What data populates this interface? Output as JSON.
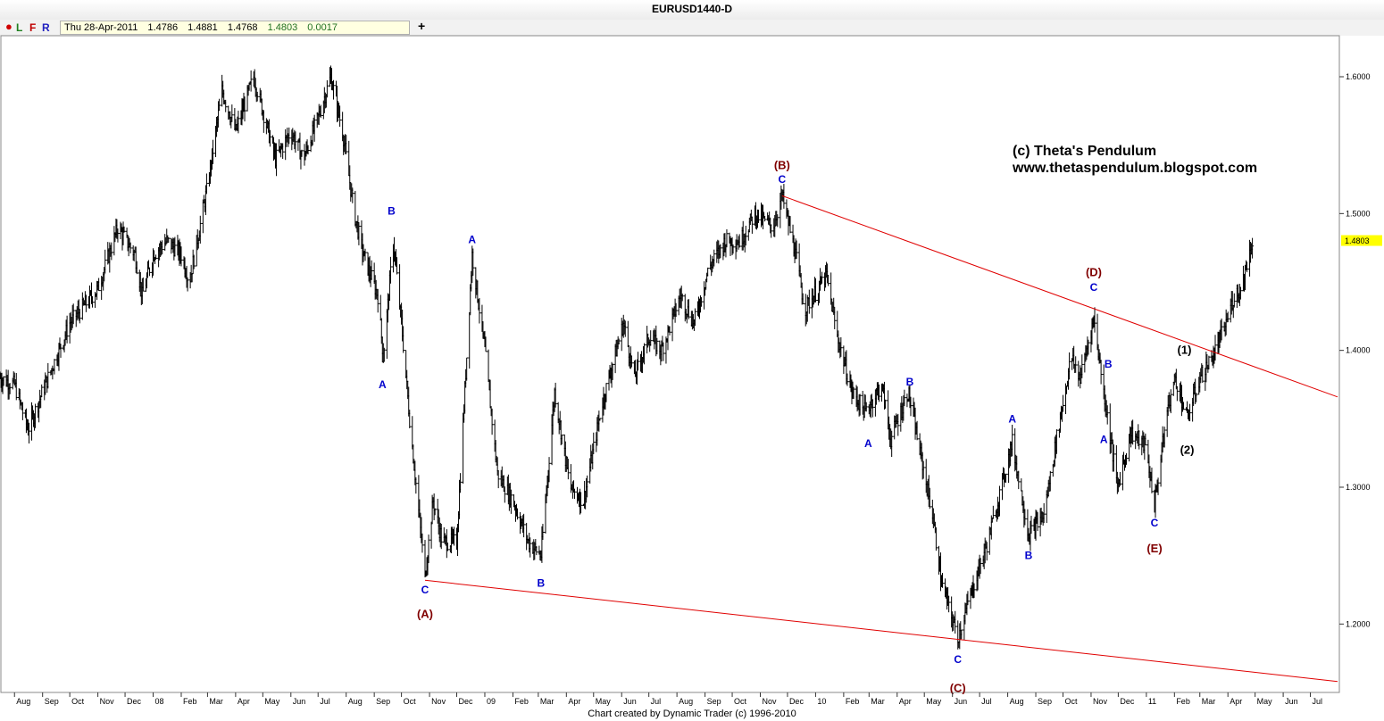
{
  "window": {
    "title": "EURUSD1440-D"
  },
  "toolbar": {
    "buttons": [
      "L",
      "F",
      "R"
    ],
    "add_label": "+",
    "quote": {
      "date": "Thu 28-Apr-2011",
      "open": "1.4786",
      "high": "1.4881",
      "low": "1.4768",
      "close": "1.4803",
      "change": "0.0017"
    }
  },
  "watermark": {
    "line1": "(c) Theta's Pendulum",
    "line2": "www.thetaspendulum.blogspot.com"
  },
  "footer": "Chart created by Dynamic Trader  (c) 1996-2010",
  "colors": {
    "price": "#000000",
    "trendline": "#e00000",
    "minor_label": "#0000cc",
    "major_label": "#800000",
    "count_label": "#000000",
    "last_price_bg": "#ffff00"
  },
  "chart_data": {
    "type": "ohlc",
    "symbol": "EURUSD",
    "timeframe": "Daily",
    "x_range": [
      "2007-07-16",
      "2011-07-31"
    ],
    "y_range": [
      1.15,
      1.63
    ],
    "y_ticks": [
      "1.2000",
      "1.3000",
      "1.4000",
      "1.5000",
      "1.6000"
    ],
    "last_price": "1.4803",
    "x_ticks": [
      {
        "label": "Aug",
        "date": "2007-08-01"
      },
      {
        "label": "Sep",
        "date": "2007-09-01"
      },
      {
        "label": "Oct",
        "date": "2007-10-01"
      },
      {
        "label": "Nov",
        "date": "2007-11-01"
      },
      {
        "label": "Dec",
        "date": "2007-12-01"
      },
      {
        "label": "08",
        "date": "2008-01-01"
      },
      {
        "label": "Feb",
        "date": "2008-02-01"
      },
      {
        "label": "Mar",
        "date": "2008-03-01"
      },
      {
        "label": "Apr",
        "date": "2008-04-01"
      },
      {
        "label": "May",
        "date": "2008-05-01"
      },
      {
        "label": "Jun",
        "date": "2008-06-01"
      },
      {
        "label": "Jul",
        "date": "2008-07-01"
      },
      {
        "label": "Aug",
        "date": "2008-08-01"
      },
      {
        "label": "Sep",
        "date": "2008-09-01"
      },
      {
        "label": "Oct",
        "date": "2008-10-01"
      },
      {
        "label": "Nov",
        "date": "2008-11-01"
      },
      {
        "label": "Dec",
        "date": "2008-12-01"
      },
      {
        "label": "09",
        "date": "2009-01-01"
      },
      {
        "label": "Feb",
        "date": "2009-02-01"
      },
      {
        "label": "Mar",
        "date": "2009-03-01"
      },
      {
        "label": "Apr",
        "date": "2009-04-01"
      },
      {
        "label": "May",
        "date": "2009-05-01"
      },
      {
        "label": "Jun",
        "date": "2009-06-01"
      },
      {
        "label": "Jul",
        "date": "2009-07-01"
      },
      {
        "label": "Aug",
        "date": "2009-08-01"
      },
      {
        "label": "Sep",
        "date": "2009-09-01"
      },
      {
        "label": "Oct",
        "date": "2009-10-01"
      },
      {
        "label": "Nov",
        "date": "2009-11-01"
      },
      {
        "label": "Dec",
        "date": "2009-12-01"
      },
      {
        "label": "10",
        "date": "2010-01-01"
      },
      {
        "label": "Feb",
        "date": "2010-02-01"
      },
      {
        "label": "Mar",
        "date": "2010-03-01"
      },
      {
        "label": "Apr",
        "date": "2010-04-01"
      },
      {
        "label": "May",
        "date": "2010-05-01"
      },
      {
        "label": "Jun",
        "date": "2010-06-01"
      },
      {
        "label": "Jul",
        "date": "2010-07-01"
      },
      {
        "label": "Aug",
        "date": "2010-08-01"
      },
      {
        "label": "Sep",
        "date": "2010-09-01"
      },
      {
        "label": "Oct",
        "date": "2010-10-01"
      },
      {
        "label": "Nov",
        "date": "2010-11-01"
      },
      {
        "label": "Dec",
        "date": "2010-12-01"
      },
      {
        "label": "11",
        "date": "2011-01-01"
      },
      {
        "label": "Feb",
        "date": "2011-02-01"
      },
      {
        "label": "Mar",
        "date": "2011-03-01"
      },
      {
        "label": "Apr",
        "date": "2011-04-01"
      },
      {
        "label": "May",
        "date": "2011-05-01"
      },
      {
        "label": "Jun",
        "date": "2011-06-01"
      },
      {
        "label": "Jul",
        "date": "2011-07-01"
      }
    ],
    "price_path": [
      [
        "2007-07-16",
        1.38
      ],
      [
        "2007-08-01",
        1.375
      ],
      [
        "2007-08-16",
        1.342
      ],
      [
        "2007-09-01",
        1.37
      ],
      [
        "2007-10-01",
        1.42
      ],
      [
        "2007-11-01",
        1.445
      ],
      [
        "2007-11-23",
        1.49
      ],
      [
        "2007-12-12",
        1.47
      ],
      [
        "2007-12-20",
        1.44
      ],
      [
        "2008-01-01",
        1.47
      ],
      [
        "2008-01-16",
        1.48
      ],
      [
        "2008-02-01",
        1.47
      ],
      [
        "2008-02-10",
        1.45
      ],
      [
        "2008-03-01",
        1.52
      ],
      [
        "2008-03-17",
        1.59
      ],
      [
        "2008-04-01",
        1.56
      ],
      [
        "2008-04-21",
        1.6
      ],
      [
        "2008-05-15",
        1.54
      ],
      [
        "2008-06-01",
        1.56
      ],
      [
        "2008-06-15",
        1.54
      ],
      [
        "2008-07-01",
        1.57
      ],
      [
        "2008-07-15",
        1.6
      ],
      [
        "2008-07-28",
        1.56
      ],
      [
        "2008-08-10",
        1.5
      ],
      [
        "2008-08-20",
        1.47
      ],
      [
        "2008-09-05",
        1.44
      ],
      [
        "2008-09-11",
        1.395
      ],
      [
        "2008-09-22",
        1.48
      ],
      [
        "2008-10-01",
        1.42
      ],
      [
        "2008-10-10",
        1.35
      ],
      [
        "2008-10-27",
        1.235
      ],
      [
        "2008-11-05",
        1.29
      ],
      [
        "2008-11-15",
        1.26
      ],
      [
        "2008-12-01",
        1.26
      ],
      [
        "2008-12-18",
        1.47
      ],
      [
        "2009-01-01",
        1.4
      ],
      [
        "2009-01-15",
        1.31
      ],
      [
        "2009-02-01",
        1.29
      ],
      [
        "2009-02-18",
        1.26
      ],
      [
        "2009-03-04",
        1.25
      ],
      [
        "2009-03-19",
        1.37
      ],
      [
        "2009-04-05",
        1.3
      ],
      [
        "2009-04-20",
        1.29
      ],
      [
        "2009-05-10",
        1.36
      ],
      [
        "2009-06-03",
        1.42
      ],
      [
        "2009-06-15",
        1.38
      ],
      [
        "2009-07-01",
        1.41
      ],
      [
        "2009-07-15",
        1.4
      ],
      [
        "2009-08-05",
        1.44
      ],
      [
        "2009-08-20",
        1.42
      ],
      [
        "2009-09-05",
        1.46
      ],
      [
        "2009-09-23",
        1.48
      ],
      [
        "2009-10-10",
        1.48
      ],
      [
        "2009-10-26",
        1.5
      ],
      [
        "2009-11-15",
        1.49
      ],
      [
        "2009-11-25",
        1.513
      ],
      [
        "2009-12-10",
        1.47
      ],
      [
        "2009-12-20",
        1.43
      ],
      [
        "2010-01-13",
        1.455
      ],
      [
        "2010-01-25",
        1.41
      ],
      [
        "2010-02-10",
        1.37
      ],
      [
        "2010-02-25",
        1.355
      ],
      [
        "2010-03-15",
        1.375
      ],
      [
        "2010-03-25",
        1.335
      ],
      [
        "2010-04-13",
        1.37
      ],
      [
        "2010-04-28",
        1.32
      ],
      [
        "2010-05-10",
        1.28
      ],
      [
        "2010-05-20",
        1.23
      ],
      [
        "2010-06-07",
        1.19
      ],
      [
        "2010-06-25",
        1.23
      ],
      [
        "2010-07-10",
        1.26
      ],
      [
        "2010-07-25",
        1.3
      ],
      [
        "2010-08-06",
        1.333
      ],
      [
        "2010-08-24",
        1.265
      ],
      [
        "2010-09-10",
        1.28
      ],
      [
        "2010-09-25",
        1.34
      ],
      [
        "2010-10-10",
        1.395
      ],
      [
        "2010-10-20",
        1.38
      ],
      [
        "2010-11-04",
        1.424
      ],
      [
        "2010-11-15",
        1.37
      ],
      [
        "2010-11-30",
        1.3
      ],
      [
        "2010-12-15",
        1.34
      ],
      [
        "2010-12-31",
        1.33
      ],
      [
        "2011-01-10",
        1.288
      ],
      [
        "2011-01-25",
        1.36
      ],
      [
        "2011-02-02",
        1.38
      ],
      [
        "2011-02-15",
        1.35
      ],
      [
        "2011-03-01",
        1.38
      ],
      [
        "2011-03-15",
        1.395
      ],
      [
        "2011-03-30",
        1.42
      ],
      [
        "2011-04-08",
        1.44
      ],
      [
        "2011-04-15",
        1.445
      ],
      [
        "2011-04-28",
        1.48
      ]
    ],
    "trendlines": [
      {
        "from": [
          "2008-10-27",
          1.232
        ],
        "to": [
          "2011-07-31",
          1.158
        ]
      },
      {
        "from": [
          "2009-11-25",
          1.513
        ],
        "to": [
          "2011-07-31",
          1.366
        ]
      }
    ],
    "annotations": [
      {
        "text": "B",
        "date": "2008-09-20",
        "price": 1.502,
        "style": "minor"
      },
      {
        "text": "A",
        "date": "2008-09-10",
        "price": 1.375,
        "style": "minor"
      },
      {
        "text": "C",
        "date": "2008-10-27",
        "price": 1.225,
        "style": "minor"
      },
      {
        "text": "(A)",
        "date": "2008-10-27",
        "price": 1.207,
        "style": "major"
      },
      {
        "text": "A",
        "date": "2008-12-18",
        "price": 1.481,
        "style": "minor"
      },
      {
        "text": "B",
        "date": "2009-03-04",
        "price": 1.23,
        "style": "minor"
      },
      {
        "text": "(B)",
        "date": "2009-11-25",
        "price": 1.535,
        "style": "major"
      },
      {
        "text": "C",
        "date": "2009-11-25",
        "price": 1.525,
        "style": "minor"
      },
      {
        "text": "A",
        "date": "2010-02-28",
        "price": 1.332,
        "style": "minor"
      },
      {
        "text": "B",
        "date": "2010-04-15",
        "price": 1.377,
        "style": "minor"
      },
      {
        "text": "C",
        "date": "2010-06-07",
        "price": 1.174,
        "style": "minor"
      },
      {
        "text": "(C)",
        "date": "2010-06-07",
        "price": 1.153,
        "style": "major"
      },
      {
        "text": "A",
        "date": "2010-08-06",
        "price": 1.35,
        "style": "minor"
      },
      {
        "text": "B",
        "date": "2010-08-24",
        "price": 1.25,
        "style": "minor"
      },
      {
        "text": "(D)",
        "date": "2010-11-04",
        "price": 1.457,
        "style": "major"
      },
      {
        "text": "C",
        "date": "2010-11-04",
        "price": 1.446,
        "style": "minor"
      },
      {
        "text": "B",
        "date": "2010-11-20",
        "price": 1.39,
        "style": "minor"
      },
      {
        "text": "A",
        "date": "2010-11-15",
        "price": 1.335,
        "style": "minor"
      },
      {
        "text": "C",
        "date": "2011-01-10",
        "price": 1.274,
        "style": "minor"
      },
      {
        "text": "(E)",
        "date": "2011-01-10",
        "price": 1.255,
        "style": "major"
      },
      {
        "text": "(1)",
        "date": "2011-02-12",
        "price": 1.4,
        "style": "count"
      },
      {
        "text": "(2)",
        "date": "2011-02-15",
        "price": 1.327,
        "style": "count"
      }
    ]
  }
}
